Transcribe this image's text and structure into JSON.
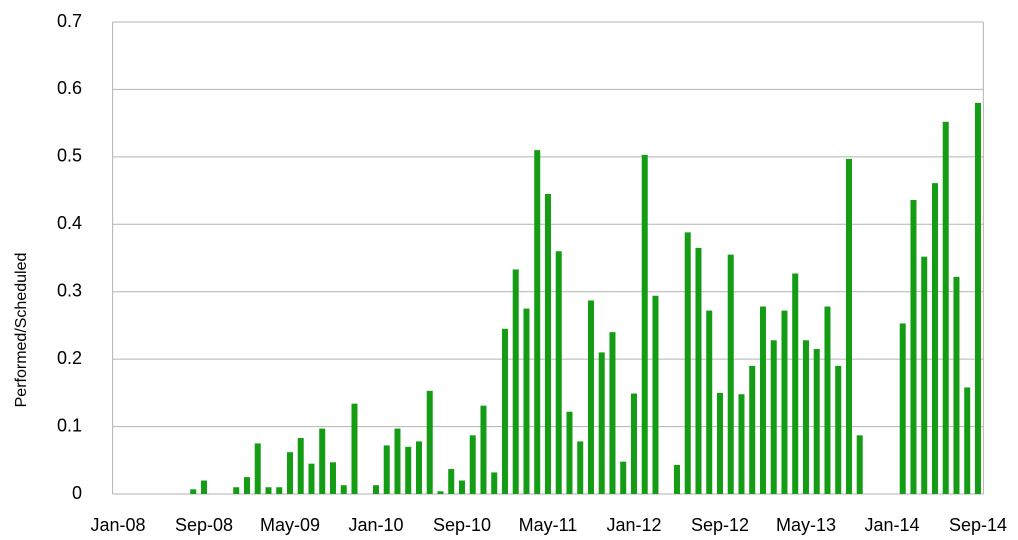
{
  "chart_data": {
    "type": "bar",
    "ylabel": "Performed/Scheduled",
    "categories": [
      "Jan-08",
      null,
      null,
      null,
      null,
      null,
      null,
      null,
      "Sep-08",
      null,
      null,
      null,
      null,
      null,
      null,
      null,
      "May-09",
      null,
      null,
      null,
      null,
      null,
      null,
      null,
      "Jan-10",
      null,
      null,
      null,
      null,
      null,
      null,
      null,
      "Sep-10",
      null,
      null,
      null,
      null,
      null,
      null,
      null,
      "May-11",
      null,
      null,
      null,
      null,
      null,
      null,
      null,
      "Jan-12",
      null,
      null,
      null,
      null,
      null,
      null,
      null,
      "Sep-12",
      null,
      null,
      null,
      null,
      null,
      null,
      null,
      "May-13",
      null,
      null,
      null,
      null,
      null,
      null,
      null,
      "Jan-14",
      null,
      null,
      null,
      null,
      null,
      null,
      null,
      "Sep-14"
    ],
    "values": [
      0,
      0,
      0,
      0,
      0,
      0,
      0,
      0.007,
      0.02,
      0,
      0,
      0.01,
      0.025,
      0.075,
      0.01,
      0.01,
      0.062,
      0.083,
      0.045,
      0.097,
      0.047,
      0.013,
      0.134,
      0,
      0.013,
      0.072,
      0.097,
      0.07,
      0.078,
      0.153,
      0.004,
      0.037,
      0.02,
      0.087,
      0.131,
      0.032,
      0.245,
      0.333,
      0.275,
      0.51,
      0.445,
      0.36,
      0.122,
      0.078,
      0.287,
      0.21,
      0.24,
      0.048,
      0.149,
      0.503,
      0.294,
      0,
      0.043,
      0.388,
      0.365,
      0.272,
      0.15,
      0.355,
      0.148,
      0.19,
      0.278,
      0.228,
      0.272,
      0.327,
      0.228,
      0.215,
      0.278,
      0.19,
      0.497,
      0.087,
      0,
      0,
      0,
      0.253,
      0.436,
      0.352,
      0.461,
      0.552,
      0.322,
      0.158,
      0.58
    ],
    "color": "#149c14",
    "ylim": [
      0,
      0.7
    ],
    "yticks": [
      0,
      0.1,
      0.2,
      0.3,
      0.4,
      0.5,
      0.6,
      0.7
    ],
    "grid": true
  }
}
